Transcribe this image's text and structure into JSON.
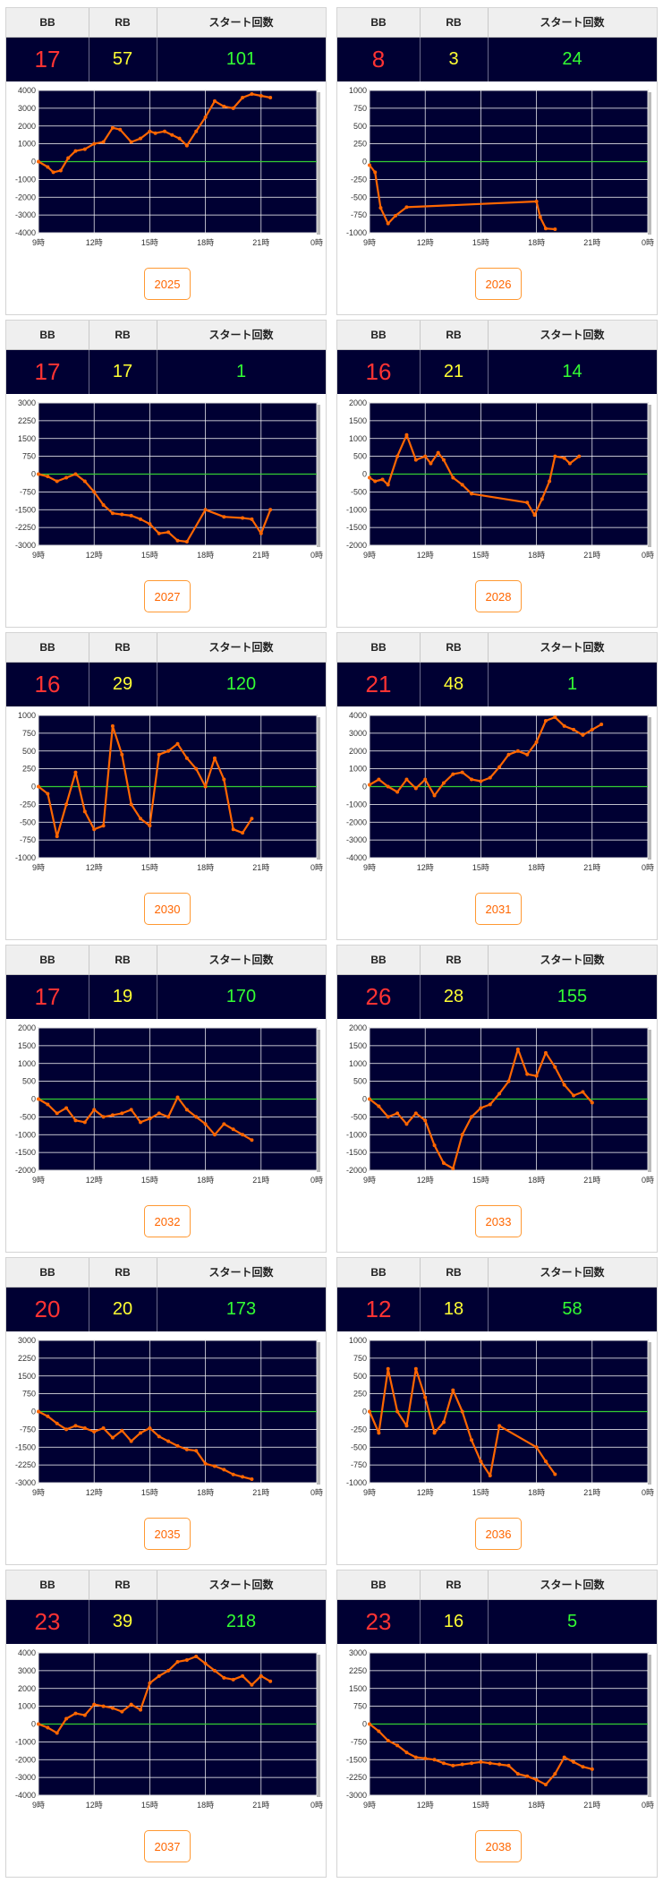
{
  "headers": {
    "bb": "BB",
    "rb": "RB",
    "start": "スタート回数"
  },
  "colors": {
    "bb": "#ff3333",
    "rb": "#ffff33",
    "start": "#33ff33",
    "line": "#ff6600",
    "zero": "#33cc33",
    "plot_bg": "#000033",
    "button": "#ff6600"
  },
  "x_ticks": [
    "9時",
    "12時",
    "15時",
    "18時",
    "21時",
    "0時"
  ],
  "machines": [
    {
      "id": "2025",
      "bb": "17",
      "rb": "57",
      "start": "101"
    },
    {
      "id": "2026",
      "bb": "8",
      "rb": "3",
      "start": "24"
    },
    {
      "id": "2027",
      "bb": "17",
      "rb": "17",
      "start": "1"
    },
    {
      "id": "2028",
      "bb": "16",
      "rb": "21",
      "start": "14"
    },
    {
      "id": "2030",
      "bb": "16",
      "rb": "29",
      "start": "120"
    },
    {
      "id": "2031",
      "bb": "21",
      "rb": "48",
      "start": "1"
    },
    {
      "id": "2032",
      "bb": "17",
      "rb": "19",
      "start": "170"
    },
    {
      "id": "2033",
      "bb": "26",
      "rb": "28",
      "start": "155"
    },
    {
      "id": "2035",
      "bb": "20",
      "rb": "20",
      "start": "173"
    },
    {
      "id": "2036",
      "bb": "12",
      "rb": "18",
      "start": "58"
    },
    {
      "id": "2037",
      "bb": "23",
      "rb": "39",
      "start": "218"
    },
    {
      "id": "2038",
      "bb": "23",
      "rb": "16",
      "start": "5"
    }
  ],
  "chart_data": [
    {
      "type": "line",
      "machine": "2025",
      "x_range": [
        9,
        24
      ],
      "ylim": [
        -4000,
        4000
      ],
      "y_ticks": [
        4000,
        3000,
        2000,
        1000,
        0,
        -1000,
        -2000,
        -3000,
        -4000
      ],
      "grid": true,
      "x": [
        9,
        9.5,
        9.8,
        10.2,
        10.6,
        11,
        11.5,
        12,
        12.5,
        13,
        13.4,
        14,
        14.5,
        15,
        15.3,
        15.8,
        16.2,
        16.6,
        17,
        17.5,
        18,
        18.5,
        19,
        19.5,
        20,
        20.5,
        21,
        21.5
      ],
      "y": [
        0,
        -300,
        -600,
        -500,
        200,
        600,
        700,
        1000,
        1100,
        1900,
        1800,
        1100,
        1300,
        1700,
        1600,
        1700,
        1500,
        1300,
        900,
        1700,
        2500,
        3400,
        3100,
        3000,
        3600,
        3800,
        3700,
        3600
      ]
    },
    {
      "type": "line",
      "machine": "2026",
      "x_range": [
        9,
        24
      ],
      "ylim": [
        -1000,
        1000
      ],
      "y_ticks": [
        1000,
        750,
        500,
        250,
        0,
        -250,
        -500,
        -750,
        -1000
      ],
      "grid": true,
      "x": [
        9,
        9.3,
        9.6,
        10,
        10.4,
        11,
        18,
        18.2,
        18.5,
        19
      ],
      "y": [
        -50,
        -150,
        -650,
        -870,
        -760,
        -640,
        -560,
        -780,
        -940,
        -950
      ]
    },
    {
      "type": "line",
      "machine": "2027",
      "x_range": [
        9,
        24
      ],
      "ylim": [
        -3000,
        3000
      ],
      "y_ticks": [
        3000,
        2250,
        1500,
        750,
        0,
        -750,
        -1500,
        -2250,
        -3000
      ],
      "grid": true,
      "x": [
        9,
        9.5,
        10,
        10.5,
        11,
        11.5,
        12,
        12.5,
        13,
        13.5,
        14,
        14.5,
        15,
        15.5,
        16,
        16.5,
        17,
        18,
        19,
        20,
        20.5,
        21,
        21.5
      ],
      "y": [
        0,
        -100,
        -300,
        -150,
        0,
        -300,
        -750,
        -1300,
        -1650,
        -1700,
        -1750,
        -1900,
        -2100,
        -2500,
        -2450,
        -2800,
        -2850,
        -1500,
        -1800,
        -1850,
        -1900,
        -2500,
        -1500
      ]
    },
    {
      "type": "line",
      "machine": "2028",
      "x_range": [
        9,
        24
      ],
      "ylim": [
        -2000,
        2000
      ],
      "y_ticks": [
        2000,
        1500,
        1000,
        500,
        0,
        -500,
        -1000,
        -1500,
        -2000
      ],
      "grid": true,
      "x": [
        9,
        9.3,
        9.7,
        10,
        10.5,
        11,
        11.5,
        12,
        12.3,
        12.7,
        13,
        13.5,
        14,
        14.5,
        17.5,
        17.9,
        18.3,
        18.7,
        19,
        19.5,
        19.8,
        20.3
      ],
      "y": [
        -100,
        -200,
        -150,
        -300,
        500,
        1100,
        400,
        500,
        300,
        600,
        400,
        -100,
        -300,
        -550,
        -800,
        -1150,
        -700,
        -200,
        500,
        450,
        300,
        500
      ]
    },
    {
      "type": "line",
      "machine": "2030",
      "x_range": [
        9,
        24
      ],
      "ylim": [
        -1000,
        1000
      ],
      "y_ticks": [
        1000,
        750,
        500,
        250,
        0,
        -250,
        -500,
        -750,
        -1000
      ],
      "grid": true,
      "x": [
        9,
        9.5,
        10,
        10.5,
        11,
        11.5,
        12,
        12.5,
        13,
        13.5,
        14,
        14.5,
        15,
        15.5,
        16,
        16.5,
        17,
        17.5,
        18,
        18.5,
        19,
        19.5,
        20,
        20.5
      ],
      "y": [
        0,
        -100,
        -700,
        -250,
        200,
        -350,
        -600,
        -550,
        850,
        450,
        -250,
        -450,
        -550,
        450,
        500,
        600,
        400,
        250,
        0,
        400,
        100,
        -600,
        -650,
        -450
      ]
    },
    {
      "type": "line",
      "machine": "2031",
      "x_range": [
        9,
        24
      ],
      "ylim": [
        -4000,
        4000
      ],
      "y_ticks": [
        4000,
        3000,
        2000,
        1000,
        0,
        -1000,
        -2000,
        -3000,
        -4000
      ],
      "grid": true,
      "x": [
        9,
        9.5,
        10,
        10.5,
        11,
        11.5,
        12,
        12.5,
        13,
        13.5,
        14,
        14.5,
        15,
        15.5,
        16,
        16.5,
        17,
        17.5,
        18,
        18.5,
        19,
        19.5,
        20,
        20.5,
        21,
        21.5
      ],
      "y": [
        100,
        400,
        0,
        -300,
        400,
        -100,
        400,
        -500,
        200,
        700,
        800,
        400,
        300,
        500,
        1100,
        1800,
        2000,
        1800,
        2500,
        3700,
        3900,
        3400,
        3200,
        2900,
        3200,
        3500
      ]
    },
    {
      "type": "line",
      "machine": "2032",
      "x_range": [
        9,
        24
      ],
      "ylim": [
        -2000,
        2000
      ],
      "y_ticks": [
        2000,
        1500,
        1000,
        500,
        0,
        -500,
        -1000,
        -1500,
        -2000
      ],
      "grid": true,
      "x": [
        9,
        9.5,
        10,
        10.5,
        11,
        11.5,
        12,
        12.5,
        13,
        13.5,
        14,
        14.5,
        15,
        15.5,
        16,
        16.5,
        17,
        17.5,
        18,
        18.5,
        19,
        19.5,
        20,
        20.5
      ],
      "y": [
        0,
        -150,
        -400,
        -250,
        -600,
        -650,
        -300,
        -500,
        -450,
        -400,
        -300,
        -650,
        -550,
        -400,
        -500,
        50,
        -300,
        -500,
        -700,
        -1000,
        -700,
        -850,
        -1000,
        -1150
      ]
    },
    {
      "type": "line",
      "machine": "2033",
      "x_range": [
        9,
        24
      ],
      "ylim": [
        -2000,
        2000
      ],
      "y_ticks": [
        2000,
        1500,
        1000,
        500,
        0,
        -500,
        -1000,
        -1500,
        -2000
      ],
      "grid": true,
      "x": [
        9,
        9.5,
        10,
        10.5,
        11,
        11.5,
        12,
        12.5,
        13,
        13.5,
        14,
        14.5,
        15,
        15.5,
        16,
        16.5,
        17,
        17.5,
        18,
        18.5,
        19,
        19.5,
        20,
        20.5,
        21
      ],
      "y": [
        0,
        -200,
        -500,
        -400,
        -700,
        -400,
        -600,
        -1300,
        -1800,
        -1950,
        -1000,
        -500,
        -250,
        -150,
        150,
        500,
        1400,
        700,
        650,
        1300,
        900,
        400,
        100,
        200,
        -100
      ]
    },
    {
      "type": "line",
      "machine": "2035",
      "x_range": [
        9,
        24
      ],
      "ylim": [
        -3000,
        3000
      ],
      "y_ticks": [
        3000,
        2250,
        1500,
        750,
        0,
        -750,
        -1500,
        -2250,
        -3000
      ],
      "grid": true,
      "x": [
        9,
        9.5,
        10,
        10.5,
        11,
        11.5,
        12,
        12.5,
        13,
        13.5,
        14,
        14.5,
        15,
        15.5,
        16,
        16.5,
        17,
        17.5,
        18,
        18.5,
        19,
        19.5,
        20,
        20.5
      ],
      "y": [
        0,
        -200,
        -500,
        -750,
        -600,
        -700,
        -850,
        -700,
        -1100,
        -800,
        -1250,
        -900,
        -700,
        -1050,
        -1250,
        -1450,
        -1600,
        -1650,
        -2200,
        -2300,
        -2450,
        -2650,
        -2750,
        -2850
      ]
    },
    {
      "type": "line",
      "machine": "2036",
      "x_range": [
        9,
        24
      ],
      "ylim": [
        -1000,
        1000
      ],
      "y_ticks": [
        1000,
        750,
        500,
        250,
        0,
        -250,
        -500,
        -750,
        -1000
      ],
      "grid": true,
      "x": [
        9,
        9.5,
        10,
        10.5,
        11,
        11.5,
        12,
        12.5,
        13,
        13.5,
        14,
        14.5,
        15,
        15.5,
        16,
        18,
        18.5,
        19
      ],
      "y": [
        0,
        -300,
        600,
        0,
        -200,
        600,
        200,
        -300,
        -150,
        300,
        0,
        -400,
        -700,
        -900,
        -200,
        -500,
        -700,
        -880
      ]
    },
    {
      "type": "line",
      "machine": "2037",
      "x_range": [
        9,
        24
      ],
      "ylim": [
        -4000,
        4000
      ],
      "y_ticks": [
        4000,
        3000,
        2000,
        1000,
        0,
        -1000,
        -2000,
        -3000,
        -4000
      ],
      "grid": true,
      "x": [
        9,
        9.5,
        10,
        10.5,
        11,
        11.5,
        12,
        12.5,
        13,
        13.5,
        14,
        14.5,
        15,
        15.5,
        16,
        16.5,
        17,
        17.5,
        18,
        18.5,
        19,
        19.5,
        20,
        20.5,
        21,
        21.5
      ],
      "y": [
        0,
        -200,
        -500,
        300,
        600,
        500,
        1100,
        1000,
        900,
        700,
        1100,
        800,
        2300,
        2700,
        3000,
        3500,
        3600,
        3800,
        3400,
        3000,
        2600,
        2500,
        2700,
        2200,
        2700,
        2400
      ]
    },
    {
      "type": "line",
      "machine": "2038",
      "x_range": [
        9,
        24
      ],
      "ylim": [
        -3000,
        3000
      ],
      "y_ticks": [
        3000,
        2250,
        1500,
        750,
        0,
        -750,
        -1500,
        -2250,
        -3000
      ],
      "grid": true,
      "x": [
        9,
        9.5,
        10,
        10.5,
        11,
        11.5,
        12,
        12.5,
        13,
        13.5,
        14,
        14.5,
        15,
        15.5,
        16,
        16.5,
        17,
        17.5,
        18,
        18.5,
        19,
        19.5,
        20,
        20.5,
        21
      ],
      "y": [
        0,
        -300,
        -700,
        -900,
        -1200,
        -1400,
        -1450,
        -1500,
        -1650,
        -1750,
        -1700,
        -1650,
        -1600,
        -1650,
        -1700,
        -1750,
        -2100,
        -2200,
        -2350,
        -2550,
        -2100,
        -1400,
        -1600,
        -1800,
        -1900
      ]
    }
  ]
}
